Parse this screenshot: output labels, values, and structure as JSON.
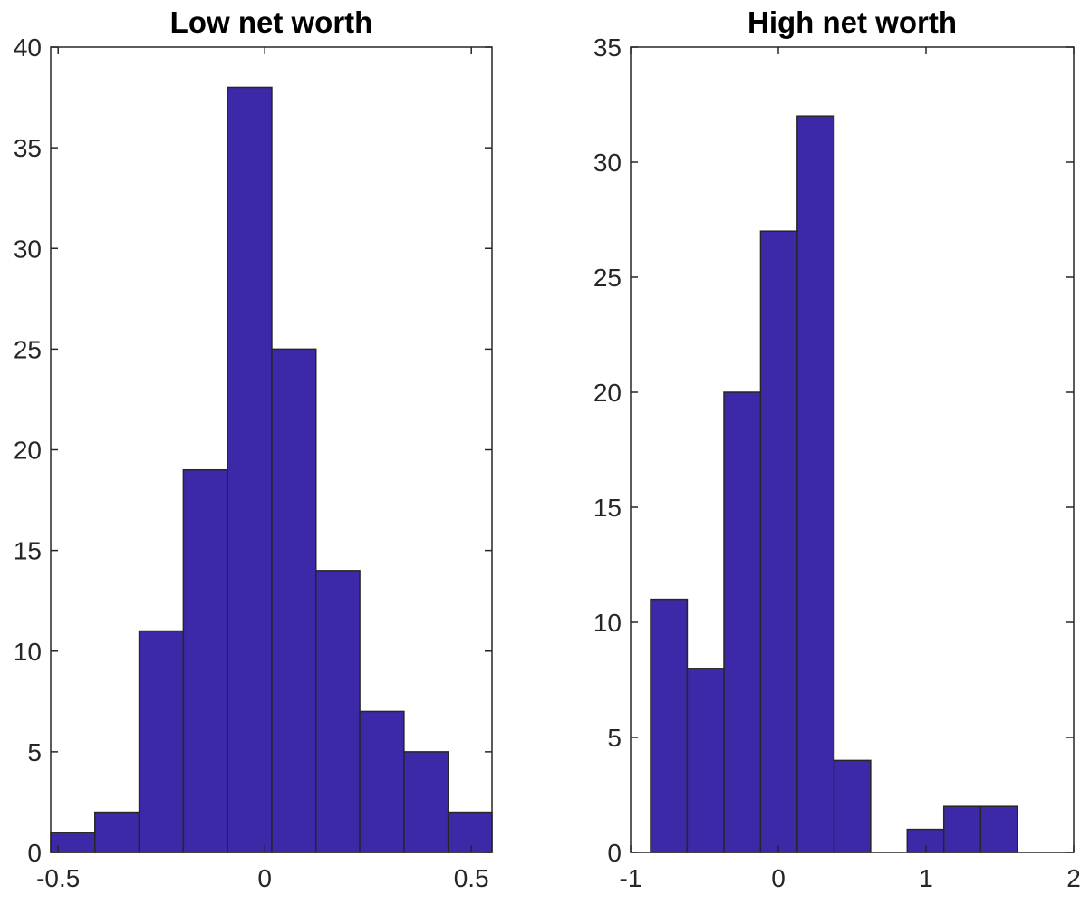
{
  "chart_data": [
    {
      "type": "histogram",
      "title": "Low net worth",
      "bins": [
        -0.518,
        -0.411,
        -0.304,
        -0.197,
        -0.09,
        0.017,
        0.124,
        0.23,
        0.337,
        0.444,
        0.55
      ],
      "values": [
        1,
        2,
        11,
        19,
        38,
        25,
        14,
        7,
        5,
        2
      ],
      "color": "#3c29a8",
      "xlim": [
        -0.518,
        0.55
      ],
      "xticks": [
        -0.5,
        0,
        0.5
      ],
      "ylim": [
        0,
        40
      ],
      "yticks": [
        0,
        5,
        10,
        15,
        20,
        25,
        30,
        35,
        40
      ]
    },
    {
      "type": "histogram",
      "title": "High net worth",
      "bins": [
        -0.865,
        -0.617,
        -0.368,
        -0.12,
        0.128,
        0.377,
        0.625,
        0.873,
        1.121,
        1.37,
        1.618
      ],
      "values": [
        11,
        8,
        20,
        27,
        32,
        4,
        0,
        1,
        2,
        2
      ],
      "color": "#3c29a8",
      "xlim": [
        -1,
        2
      ],
      "xticks": [
        -1,
        0,
        1,
        2
      ],
      "ylim": [
        0,
        35
      ],
      "yticks": [
        0,
        5,
        10,
        15,
        20,
        25,
        30,
        35
      ]
    }
  ]
}
